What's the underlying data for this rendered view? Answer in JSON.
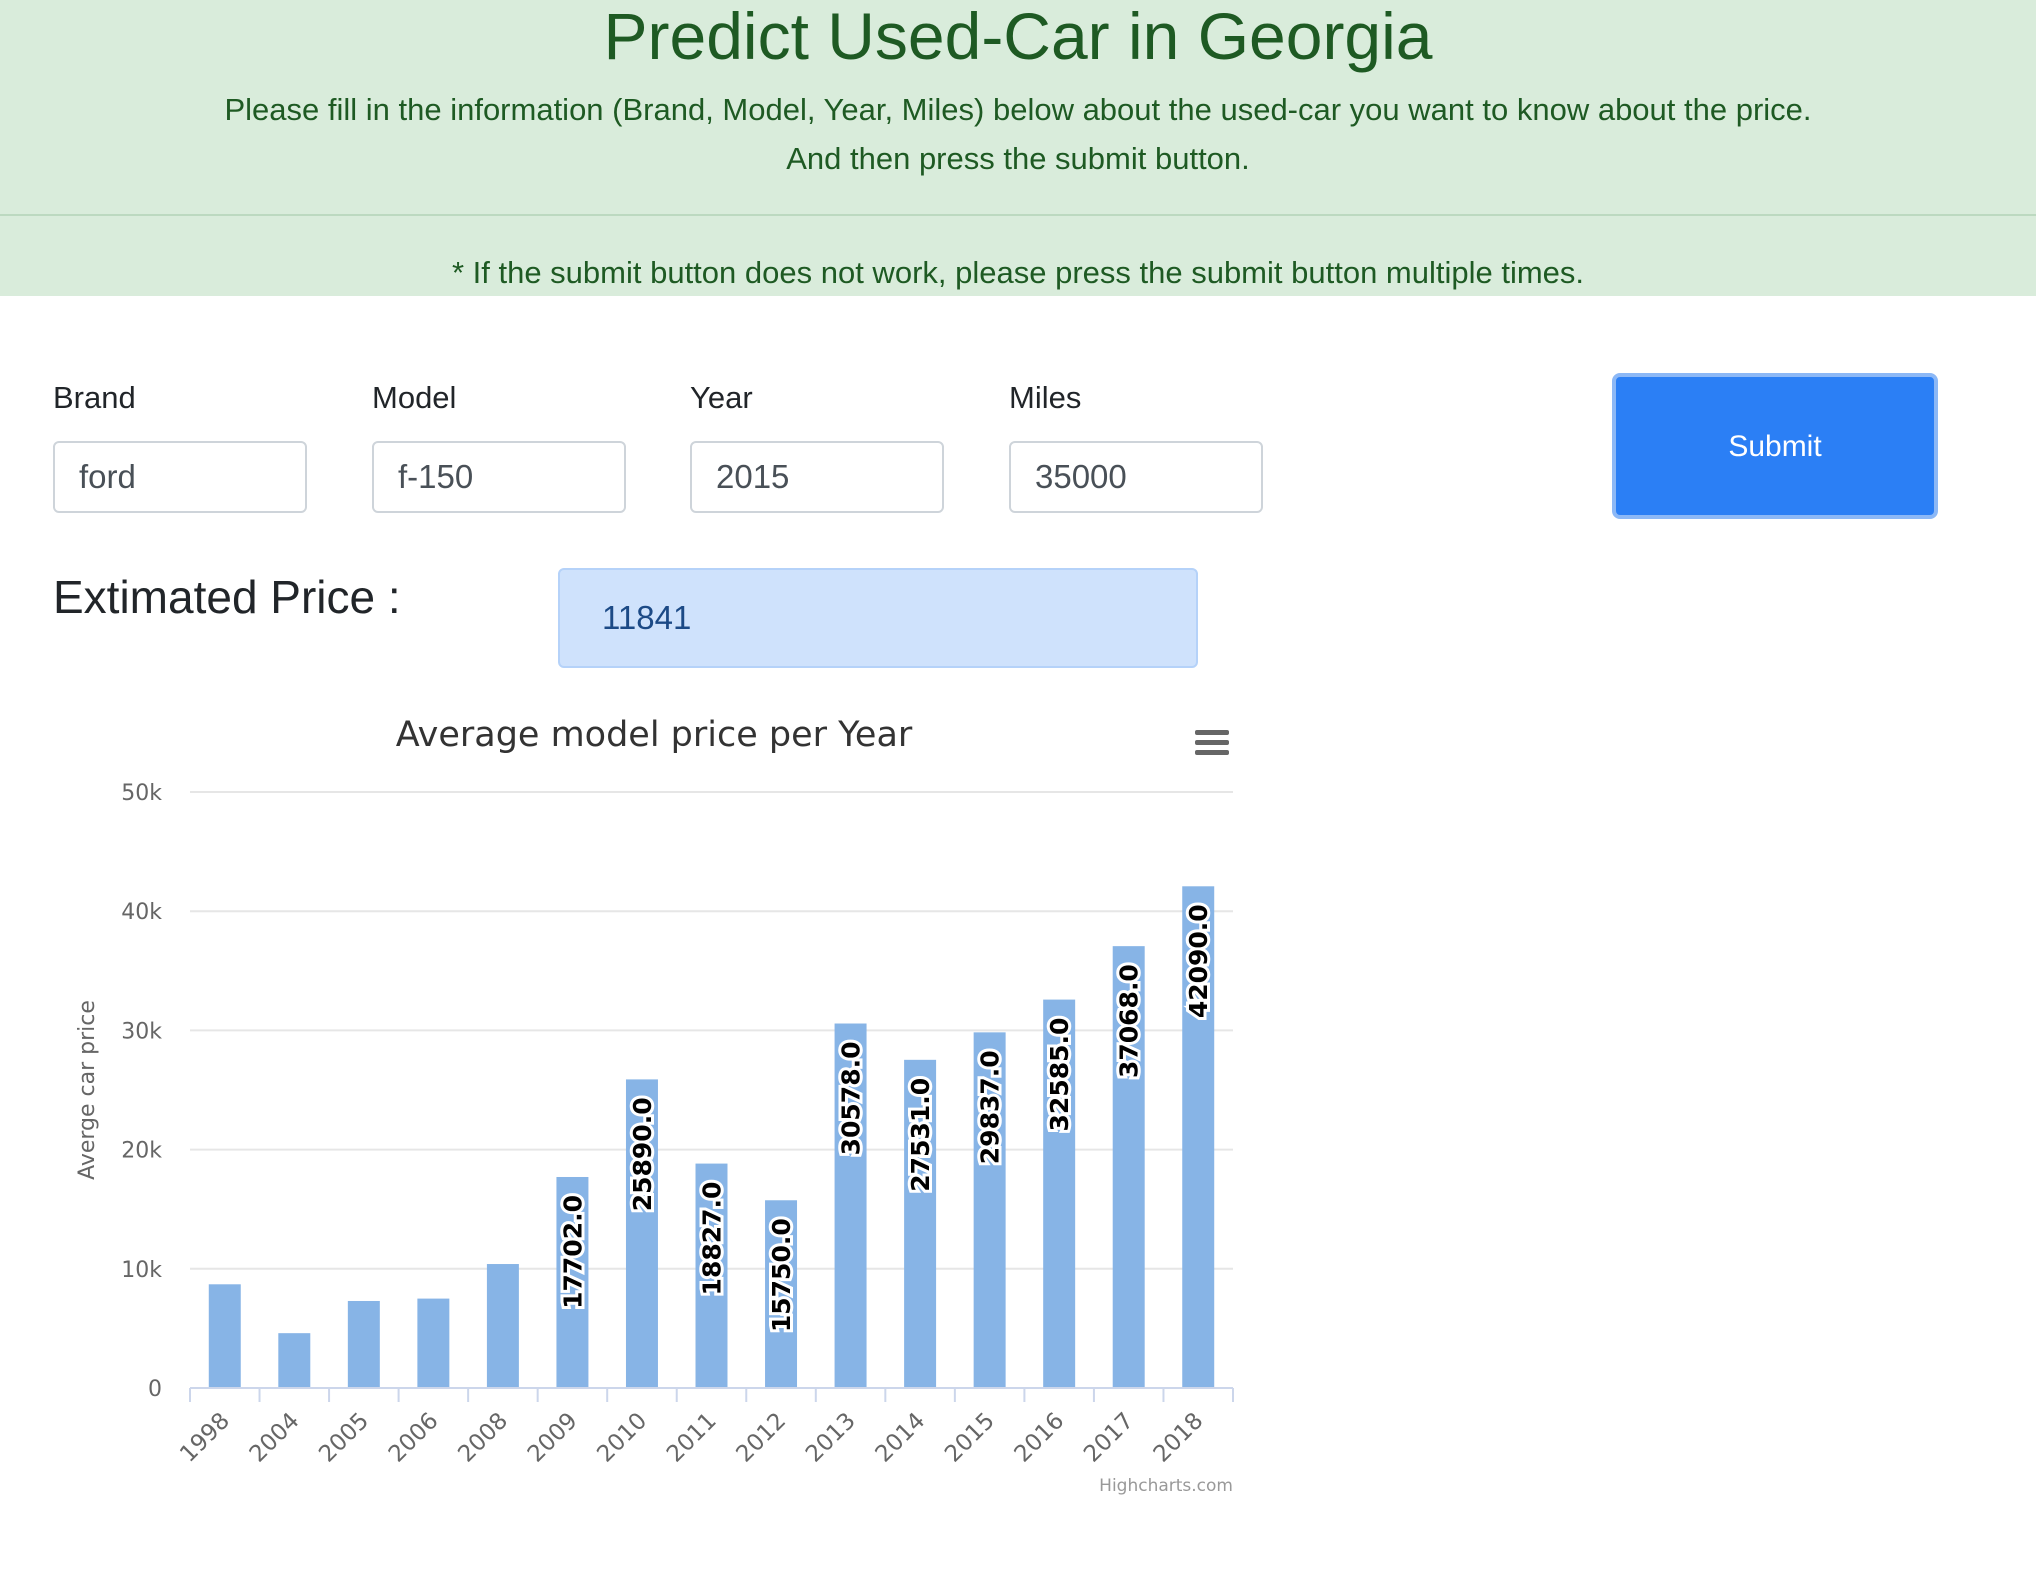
{
  "header": {
    "title": "Predict Used-Car in Georgia",
    "subtitle_line1": "Please fill in the information (Brand, Model, Year, Miles) below about the used-car you want to know about the price.",
    "subtitle_line2": "And then press the submit button.",
    "note": "* If the submit button does not work, please press the submit button multiple times."
  },
  "form": {
    "brand_label": "Brand",
    "brand_value": "ford",
    "model_label": "Model",
    "model_value": "f-150",
    "year_label": "Year",
    "year_value": "2015",
    "miles_label": "Miles",
    "miles_value": "35000",
    "submit_label": "Submit"
  },
  "result": {
    "label": "Extimated Price :",
    "value": "11841"
  },
  "colors": {
    "banner_bg": "#d9ecdb",
    "banner_text": "#1e5a23",
    "submit_bg": "#2b7ff5",
    "bar": "#87b4e6"
  },
  "chart_data": {
    "type": "bar",
    "title": "Average model price per Year",
    "xlabel": "",
    "ylabel": "Averge car price",
    "categories": [
      "1998",
      "2004",
      "2005",
      "2006",
      "2008",
      "2009",
      "2010",
      "2011",
      "2012",
      "2013",
      "2014",
      "2015",
      "2016",
      "2017",
      "2018"
    ],
    "values": [
      8700,
      4600,
      7300,
      7500,
      10400,
      17702.0,
      25890.0,
      18827.0,
      15750.0,
      30578.0,
      27531.0,
      29837.0,
      32585.0,
      37068.0,
      42090.0
    ],
    "data_labels": [
      "",
      "",
      "",
      "",
      "",
      "17702.0",
      "25890.0",
      "18827.0",
      "15750.0",
      "30578.0",
      "27531.0",
      "29837.0",
      "32585.0",
      "37068.0",
      "42090.0"
    ],
    "yticks": [
      "0",
      "10k",
      "20k",
      "30k",
      "40k",
      "50k"
    ],
    "ylim": [
      0,
      50000
    ],
    "grid": true,
    "legend": "none",
    "credit": "Highcharts.com",
    "menu_icon": "hamburger-menu-icon"
  }
}
